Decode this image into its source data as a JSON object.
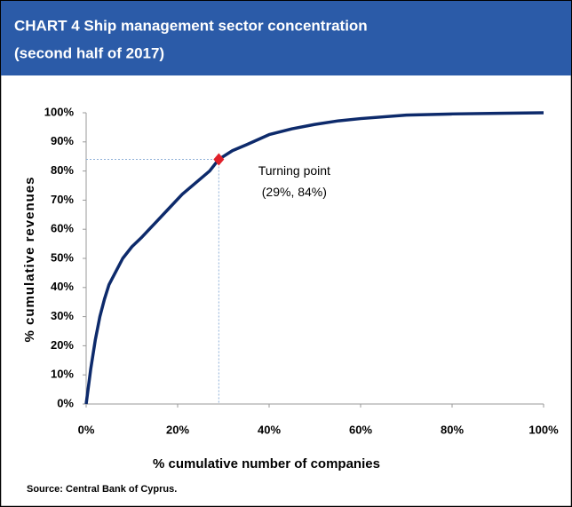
{
  "chart_data": {
    "type": "line",
    "title": "CHART 4  Ship management sector concentration",
    "subtitle": "(second half of 2017)",
    "x_label": "% cumulative number of companies",
    "y_label": "% cumulative revenues",
    "source": "Source: Central Bank of Cyprus.",
    "x": [
      0,
      1,
      2,
      3,
      4,
      5,
      6,
      8,
      10,
      12,
      15,
      18,
      21,
      24,
      27,
      29,
      32,
      35,
      40,
      45,
      50,
      55,
      60,
      70,
      80,
      90,
      100
    ],
    "series": [
      {
        "color": "#0d2a6b",
        "values": [
          0,
          12,
          22,
          30,
          36,
          41,
          44,
          50,
          54,
          57,
          62,
          67,
          72,
          76,
          80,
          84,
          87,
          89,
          92.5,
          94.5,
          96,
          97.2,
          98,
          99.2,
          99.6,
          99.8,
          100
        ]
      }
    ],
    "turning_point": {
      "x": 29,
      "y": 84,
      "color": "#e0202a",
      "label": [
        "Turning point",
        "(29%, 84%)"
      ]
    },
    "xlim": [
      0,
      100
    ],
    "ylim": [
      0,
      100
    ],
    "xticks": [
      {
        "value": 0,
        "label": "0%"
      },
      {
        "value": 20,
        "label": "20%"
      },
      {
        "value": 40,
        "label": "40%"
      },
      {
        "value": 60,
        "label": "60%"
      },
      {
        "value": 80,
        "label": "80%"
      },
      {
        "value": 100,
        "label": "100%"
      }
    ],
    "yticks": [
      {
        "value": 0,
        "label": "0%"
      },
      {
        "value": 10,
        "label": "10%"
      },
      {
        "value": 20,
        "label": "20%"
      },
      {
        "value": 30,
        "label": "30%"
      },
      {
        "value": 40,
        "label": "40%"
      },
      {
        "value": 50,
        "label": "50%"
      },
      {
        "value": 60,
        "label": "60%"
      },
      {
        "value": 70,
        "label": "70%"
      },
      {
        "value": 80,
        "label": "80%"
      },
      {
        "value": 90,
        "label": "90%"
      },
      {
        "value": 100,
        "label": "100%"
      }
    ]
  }
}
